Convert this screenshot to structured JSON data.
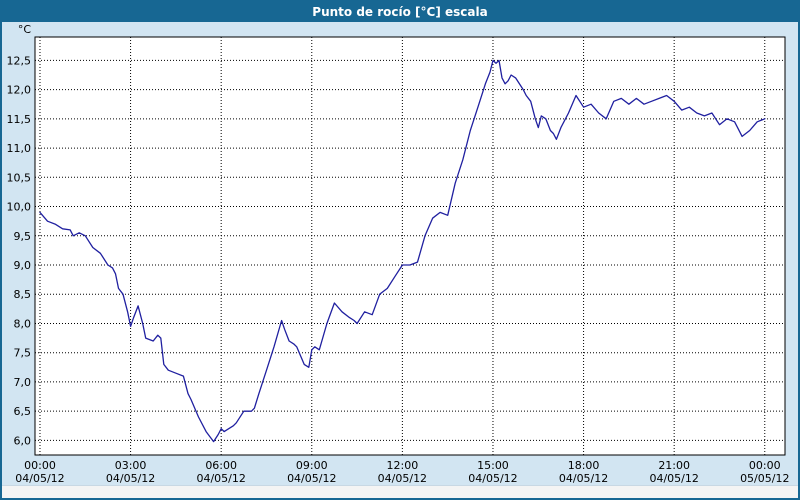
{
  "title": "Punto de rocío [°C] escala",
  "colors": {
    "titlebar_bg": "#176793",
    "titlebar_text": "#ffffff",
    "window_bg": "#d2e5f2",
    "plot_bg": "#ffffff",
    "plot_border": "#000000",
    "grid": "#000000",
    "line": "#2020a0",
    "tick_text": "#000000"
  },
  "chart_data": {
    "type": "line",
    "title": "Punto de rocío [°C] escala",
    "unit_label": "°C",
    "xlabel": "",
    "ylabel": "",
    "grid": true,
    "legend": "none",
    "ylim": [
      5.75,
      12.9
    ],
    "xlim_hours": [
      -0.165,
      24.67
    ],
    "y_ticks": [
      {
        "value": 12.5,
        "label": "12,5"
      },
      {
        "value": 12.0,
        "label": "12,0"
      },
      {
        "value": 11.5,
        "label": "11,5"
      },
      {
        "value": 11.0,
        "label": "11,0"
      },
      {
        "value": 10.5,
        "label": "10,5"
      },
      {
        "value": 10.0,
        "label": "10,0"
      },
      {
        "value": 9.5,
        "label": "9,5"
      },
      {
        "value": 9.0,
        "label": "9,0"
      },
      {
        "value": 8.5,
        "label": "8,5"
      },
      {
        "value": 8.0,
        "label": "8,0"
      },
      {
        "value": 7.5,
        "label": "7,5"
      },
      {
        "value": 7.0,
        "label": "7,0"
      },
      {
        "value": 6.5,
        "label": "6,5"
      },
      {
        "value": 6.0,
        "label": "6,0"
      }
    ],
    "x_ticks": [
      {
        "hour": 0,
        "time": "00:00",
        "date": "04/05/12"
      },
      {
        "hour": 3,
        "time": "03:00",
        "date": "04/05/12"
      },
      {
        "hour": 6,
        "time": "06:00",
        "date": "04/05/12"
      },
      {
        "hour": 9,
        "time": "09:00",
        "date": "04/05/12"
      },
      {
        "hour": 12,
        "time": "12:00",
        "date": "04/05/12"
      },
      {
        "hour": 15,
        "time": "15:00",
        "date": "04/05/12"
      },
      {
        "hour": 18,
        "time": "18:00",
        "date": "04/05/12"
      },
      {
        "hour": 21,
        "time": "21:00",
        "date": "04/05/12"
      },
      {
        "hour": 24,
        "time": "00:00",
        "date": "05/05/12"
      }
    ],
    "series": [
      {
        "name": "Punto de rocío [°C]",
        "points": [
          [
            0.0,
            9.9
          ],
          [
            0.25,
            9.75
          ],
          [
            0.5,
            9.7
          ],
          [
            0.75,
            9.62
          ],
          [
            1.0,
            9.6
          ],
          [
            1.1,
            9.5
          ],
          [
            1.3,
            9.55
          ],
          [
            1.5,
            9.5
          ],
          [
            1.75,
            9.3
          ],
          [
            2.0,
            9.2
          ],
          [
            2.25,
            9.0
          ],
          [
            2.4,
            8.95
          ],
          [
            2.5,
            8.85
          ],
          [
            2.6,
            8.6
          ],
          [
            2.75,
            8.5
          ],
          [
            2.9,
            8.2
          ],
          [
            3.0,
            7.95
          ],
          [
            3.1,
            8.1
          ],
          [
            3.25,
            8.3
          ],
          [
            3.4,
            8.0
          ],
          [
            3.5,
            7.75
          ],
          [
            3.75,
            7.7
          ],
          [
            3.9,
            7.8
          ],
          [
            4.0,
            7.75
          ],
          [
            4.1,
            7.3
          ],
          [
            4.25,
            7.2
          ],
          [
            4.5,
            7.15
          ],
          [
            4.75,
            7.1
          ],
          [
            4.9,
            6.8
          ],
          [
            5.0,
            6.7
          ],
          [
            5.25,
            6.4
          ],
          [
            5.5,
            6.15
          ],
          [
            5.75,
            5.98
          ],
          [
            5.9,
            6.1
          ],
          [
            6.0,
            6.2
          ],
          [
            6.1,
            6.15
          ],
          [
            6.25,
            6.2
          ],
          [
            6.4,
            6.25
          ],
          [
            6.5,
            6.3
          ],
          [
            6.75,
            6.5
          ],
          [
            7.0,
            6.5
          ],
          [
            7.1,
            6.55
          ],
          [
            7.25,
            6.8
          ],
          [
            7.5,
            7.2
          ],
          [
            7.75,
            7.6
          ],
          [
            8.0,
            8.05
          ],
          [
            8.1,
            7.9
          ],
          [
            8.25,
            7.7
          ],
          [
            8.4,
            7.65
          ],
          [
            8.5,
            7.6
          ],
          [
            8.75,
            7.3
          ],
          [
            8.9,
            7.25
          ],
          [
            9.0,
            7.55
          ],
          [
            9.1,
            7.6
          ],
          [
            9.25,
            7.55
          ],
          [
            9.5,
            8.0
          ],
          [
            9.75,
            8.35
          ],
          [
            10.0,
            8.2
          ],
          [
            10.25,
            8.1
          ],
          [
            10.4,
            8.05
          ],
          [
            10.5,
            8.0
          ],
          [
            10.75,
            8.2
          ],
          [
            11.0,
            8.15
          ],
          [
            11.25,
            8.5
          ],
          [
            11.5,
            8.6
          ],
          [
            11.75,
            8.8
          ],
          [
            12.0,
            9.0
          ],
          [
            12.25,
            9.0
          ],
          [
            12.5,
            9.05
          ],
          [
            12.75,
            9.5
          ],
          [
            13.0,
            9.8
          ],
          [
            13.25,
            9.9
          ],
          [
            13.5,
            9.85
          ],
          [
            13.75,
            10.4
          ],
          [
            14.0,
            10.8
          ],
          [
            14.25,
            11.3
          ],
          [
            14.5,
            11.7
          ],
          [
            14.75,
            12.1
          ],
          [
            14.9,
            12.3
          ],
          [
            15.0,
            12.5
          ],
          [
            15.1,
            12.45
          ],
          [
            15.2,
            12.5
          ],
          [
            15.3,
            12.2
          ],
          [
            15.4,
            12.1
          ],
          [
            15.5,
            12.15
          ],
          [
            15.6,
            12.25
          ],
          [
            15.75,
            12.2
          ],
          [
            16.0,
            12.0
          ],
          [
            16.1,
            11.9
          ],
          [
            16.25,
            11.8
          ],
          [
            16.4,
            11.5
          ],
          [
            16.5,
            11.35
          ],
          [
            16.6,
            11.55
          ],
          [
            16.75,
            11.5
          ],
          [
            16.9,
            11.3
          ],
          [
            17.0,
            11.25
          ],
          [
            17.1,
            11.15
          ],
          [
            17.25,
            11.35
          ],
          [
            17.5,
            11.6
          ],
          [
            17.75,
            11.9
          ],
          [
            18.0,
            11.7
          ],
          [
            18.25,
            11.75
          ],
          [
            18.5,
            11.6
          ],
          [
            18.75,
            11.5
          ],
          [
            19.0,
            11.8
          ],
          [
            19.25,
            11.85
          ],
          [
            19.5,
            11.75
          ],
          [
            19.75,
            11.85
          ],
          [
            20.0,
            11.75
          ],
          [
            20.25,
            11.8
          ],
          [
            20.5,
            11.85
          ],
          [
            20.75,
            11.9
          ],
          [
            21.0,
            11.8
          ],
          [
            21.25,
            11.65
          ],
          [
            21.5,
            11.7
          ],
          [
            21.75,
            11.6
          ],
          [
            22.0,
            11.55
          ],
          [
            22.25,
            11.6
          ],
          [
            22.5,
            11.4
          ],
          [
            22.75,
            11.5
          ],
          [
            23.0,
            11.45
          ],
          [
            23.25,
            11.2
          ],
          [
            23.5,
            11.3
          ],
          [
            23.75,
            11.45
          ],
          [
            24.0,
            11.5
          ]
        ]
      }
    ]
  }
}
